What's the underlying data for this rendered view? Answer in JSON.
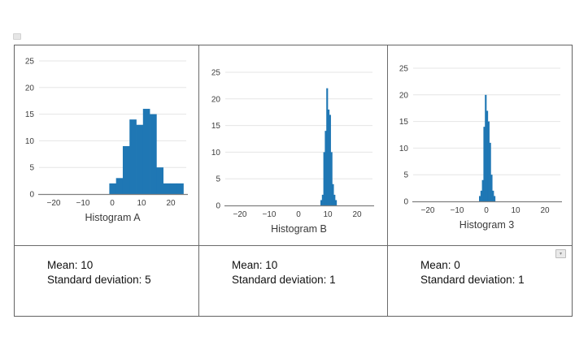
{
  "page": {
    "background": "#ffffff",
    "table_border_color": "#636363"
  },
  "icons": {
    "cell_handle": "▾"
  },
  "chart_data": [
    {
      "type": "bar",
      "title": "Histogram A",
      "bar_color": "#1f77b4",
      "grid": true,
      "x_tick_values": [
        -20,
        -10,
        0,
        10,
        20
      ],
      "x_tick_labels": [
        "−20",
        "−10",
        "0",
        "10",
        "20"
      ],
      "y_ticks": [
        0,
        5,
        10,
        15,
        20,
        25
      ],
      "xlim": [
        -25,
        25.5
      ],
      "ylim": [
        0,
        26
      ],
      "bin_start": -1,
      "bin_width": 2.3,
      "counts": [
        2,
        3,
        9,
        14,
        13,
        16,
        15,
        5,
        2,
        2,
        2
      ],
      "mean_text": "Mean: 10",
      "std_text": "Standard deviation: 5"
    },
    {
      "type": "bar",
      "title": "Histogram B",
      "bar_color": "#1f77b4",
      "grid": true,
      "x_tick_values": [
        -20,
        -10,
        0,
        10,
        20
      ],
      "x_tick_labels": [
        "−20",
        "−10",
        "0",
        "10",
        "20"
      ],
      "y_ticks": [
        0,
        5,
        10,
        15,
        20,
        25
      ],
      "xlim": [
        -25,
        25.5
      ],
      "ylim": [
        0,
        26
      ],
      "bin_start": 7.5,
      "bin_width": 0.5,
      "counts": [
        1,
        2,
        10,
        14,
        22,
        18,
        17,
        10,
        4,
        2,
        1
      ],
      "mean_text": "Mean: 10",
      "std_text": "Standard deviation: 1"
    },
    {
      "type": "bar",
      "title": "Histogram 3",
      "bar_color": "#1f77b4",
      "grid": true,
      "x_tick_values": [
        -20,
        -10,
        0,
        10,
        20
      ],
      "x_tick_labels": [
        "−20",
        "−10",
        "0",
        "10",
        "20"
      ],
      "y_ticks": [
        0,
        5,
        10,
        15,
        20,
        25
      ],
      "xlim": [
        -25,
        25.5
      ],
      "ylim": [
        0,
        26
      ],
      "bin_start": -2.5,
      "bin_width": 0.5,
      "counts": [
        1,
        2,
        4,
        14,
        20,
        17,
        15,
        11,
        5,
        2,
        1
      ],
      "mean_text": "Mean: 0",
      "std_text": "Standard deviation: 1"
    }
  ],
  "chart_style": {
    "grid_color": "#e5e5e5",
    "axis_color": "#7f7f7f",
    "tick_color": "#3d3d3d",
    "title_color": "#3a3a3a"
  }
}
